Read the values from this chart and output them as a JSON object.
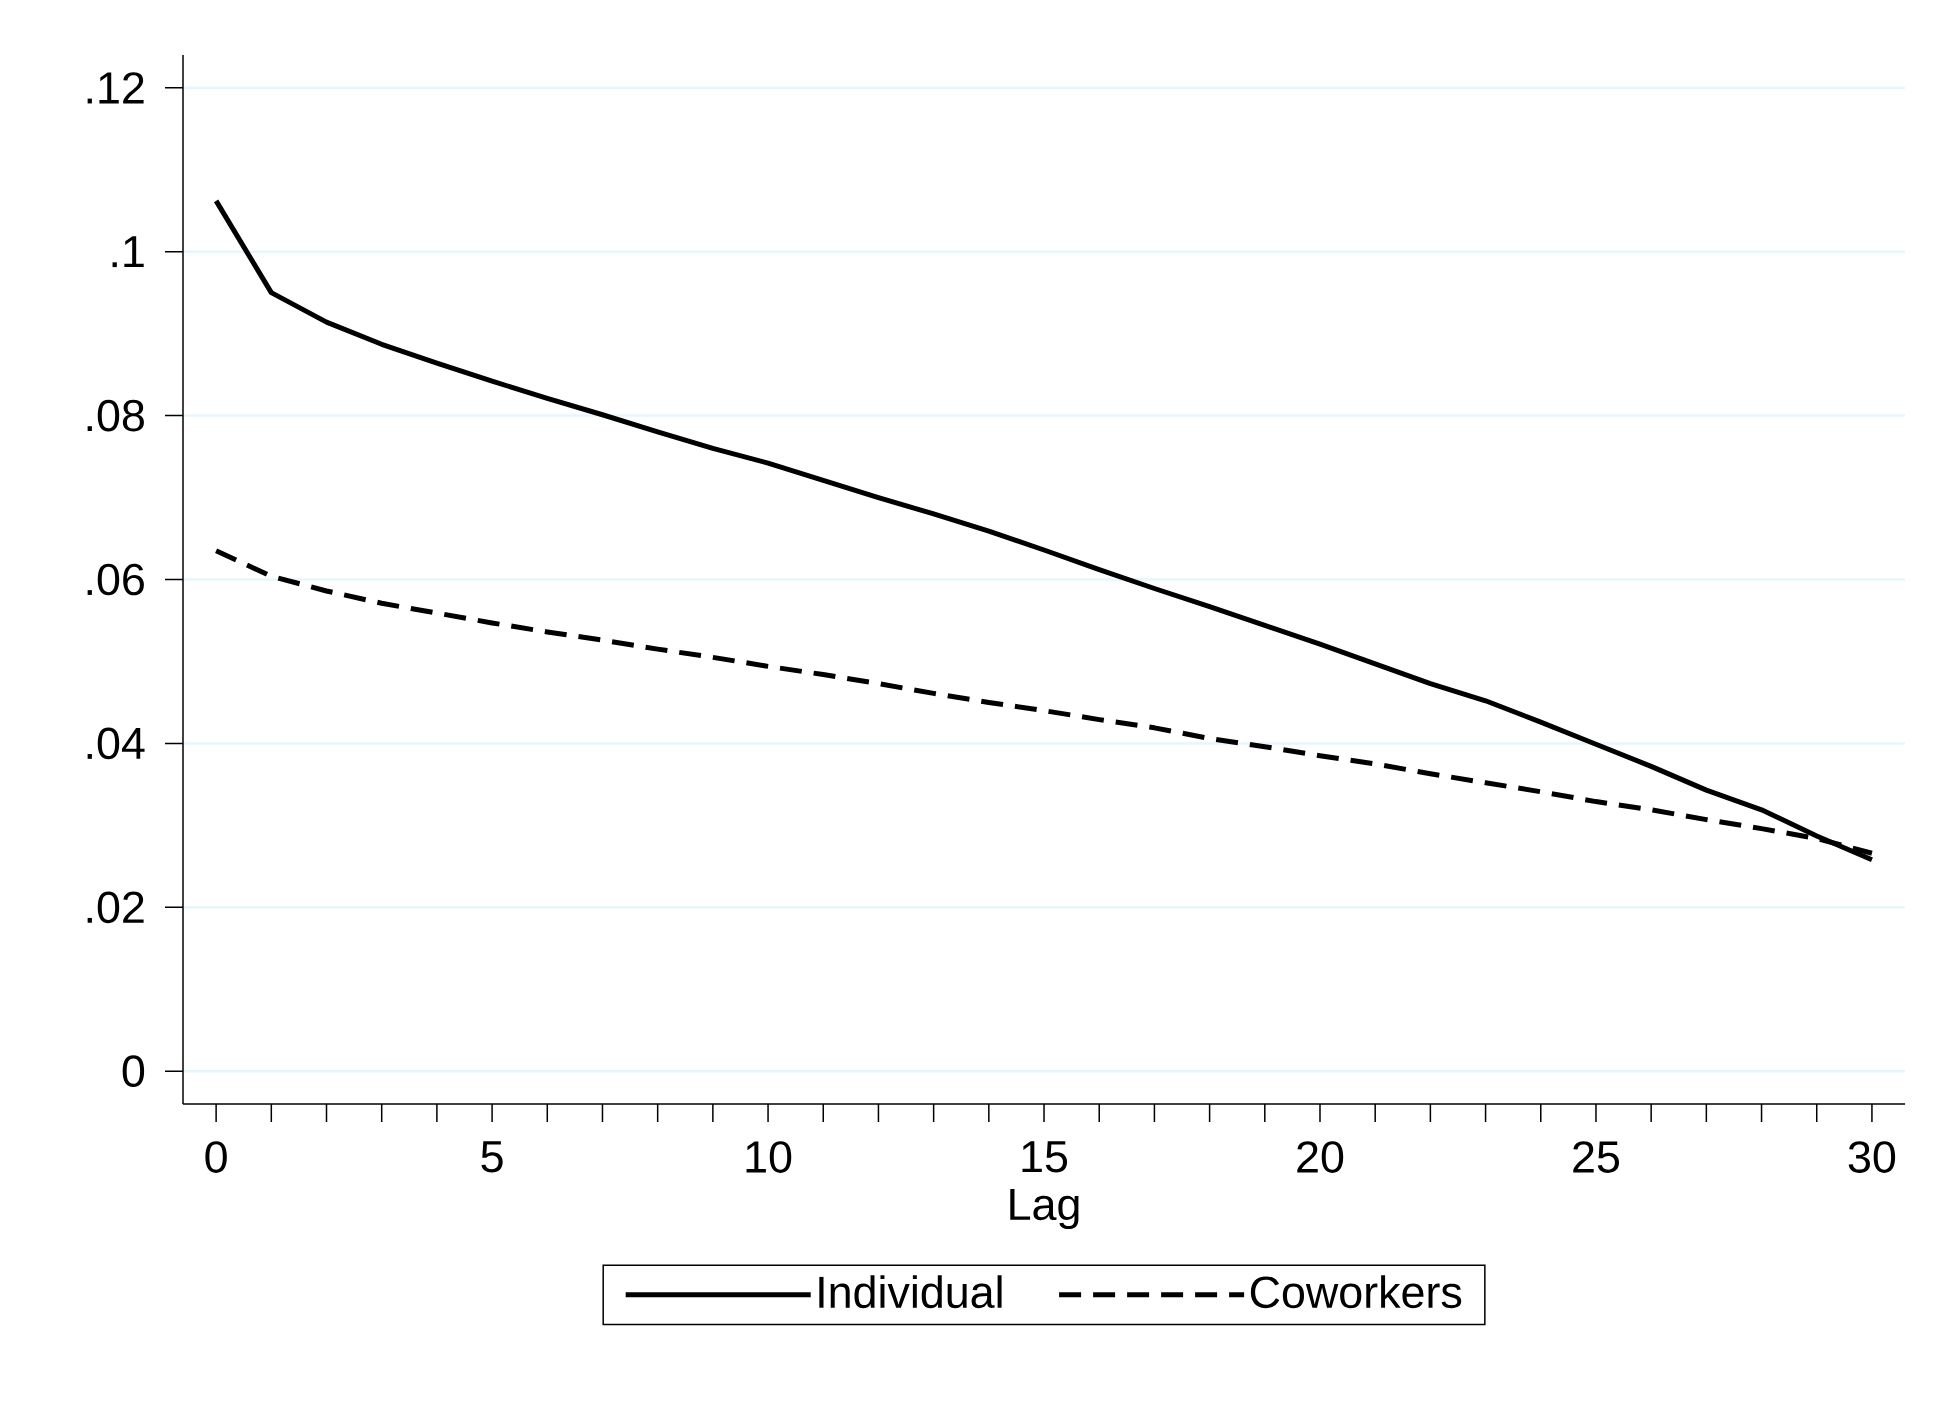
{
  "chart_data": {
    "type": "line",
    "xlabel": "Lag",
    "x": [
      0,
      1,
      2,
      3,
      4,
      5,
      6,
      7,
      8,
      9,
      10,
      11,
      12,
      13,
      14,
      15,
      16,
      17,
      18,
      19,
      20,
      21,
      22,
      23,
      24,
      25,
      26,
      27,
      28,
      29,
      30
    ],
    "series": [
      {
        "name": "Individual",
        "color": "#000000",
        "line_style": "solid",
        "values": [
          0.1062,
          0.095,
          0.0914,
          0.0887,
          0.0864,
          0.0842,
          0.0821,
          0.0801,
          0.078,
          0.076,
          0.0742,
          0.0721,
          0.07,
          0.068,
          0.0659,
          0.0636,
          0.0612,
          0.0589,
          0.0567,
          0.0544,
          0.0521,
          0.0497,
          0.0473,
          0.0452,
          0.0426,
          0.0399,
          0.0372,
          0.0343,
          0.0319,
          0.0287,
          0.0258
        ]
      },
      {
        "name": "Coworkers",
        "color": "#000000",
        "line_style": "dashed",
        "values": [
          0.0635,
          0.0604,
          0.0586,
          0.0571,
          0.0559,
          0.0547,
          0.0536,
          0.0526,
          0.0515,
          0.0505,
          0.0494,
          0.0484,
          0.0473,
          0.0461,
          0.045,
          0.044,
          0.0429,
          0.0419,
          0.0406,
          0.0396,
          0.0385,
          0.0375,
          0.0363,
          0.0352,
          0.0341,
          0.0329,
          0.0319,
          0.0307,
          0.0296,
          0.0284,
          0.0266
        ]
      }
    ],
    "xlim": [
      -0.6,
      30.6
    ],
    "ylim": [
      -0.004,
      0.124
    ],
    "xticks": [
      0,
      5,
      10,
      15,
      20,
      25,
      30
    ],
    "yticks": [
      0,
      {
        "value": 0.02,
        "label": ".02"
      },
      {
        "value": 0.04,
        "label": ".04"
      },
      {
        "value": 0.06,
        "label": ".06"
      },
      {
        "value": 0.08,
        "label": ".08"
      },
      {
        "value": 0.1,
        "label": ".1"
      },
      {
        "value": 0.12,
        "label": ".12"
      }
    ],
    "grid": "y",
    "legend": "bottom"
  }
}
